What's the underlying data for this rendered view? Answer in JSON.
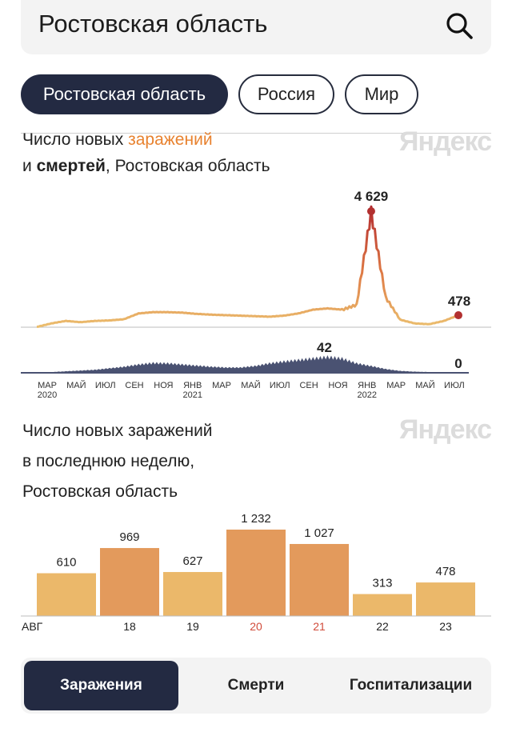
{
  "search": {
    "value": "Ростовская область"
  },
  "region_tabs": [
    "Ростовская область",
    "Россия",
    "Мир"
  ],
  "chart1": {
    "title_part1": "Число новых ",
    "title_accent": "заражений",
    "title_part2": "и ",
    "title_bold": "смертей",
    "title_part3": ", Ростовская область",
    "watermark": "Яндекс",
    "peak_label": "4 629",
    "last_label": "478",
    "deaths_peak_label": "42",
    "deaths_last_label": "0",
    "month_labels": [
      "МАР",
      "МАЙ",
      "ИЮЛ",
      "СЕН",
      "НОЯ",
      "ЯНВ",
      "МАР",
      "МАЙ",
      "ИЮЛ",
      "СЕН",
      "НОЯ",
      "ЯНВ",
      "МАР",
      "МАЙ",
      "ИЮЛ"
    ],
    "year_labels": [
      "2020",
      "2021",
      "2022"
    ]
  },
  "chart2": {
    "title_line1": "Число новых заражений",
    "title_line2": "в последнюю неделю,",
    "title_line3": "Ростовская область",
    "watermark": "Яндекс"
  },
  "chart_data": [
    {
      "type": "area",
      "title": "Число новых заражений и смертей, Ростовская область",
      "series": [
        {
          "name": "заражений",
          "x": [
            "2020-03",
            "2020-04",
            "2020-05",
            "2020-06",
            "2020-07",
            "2020-08",
            "2020-09",
            "2020-10",
            "2020-11",
            "2020-12",
            "2021-01",
            "2021-02",
            "2021-03",
            "2021-04",
            "2021-05",
            "2021-06",
            "2021-07",
            "2021-08",
            "2021-09",
            "2021-10",
            "2021-11",
            "2021-12",
            "2022-01",
            "2022-02",
            "2022-03",
            "2022-04",
            "2022-05",
            "2022-06",
            "2022-07",
            "2022-08"
          ],
          "values": [
            10,
            150,
            250,
            200,
            250,
            270,
            320,
            550,
            600,
            600,
            580,
            530,
            500,
            480,
            460,
            440,
            420,
            460,
            550,
            700,
            750,
            700,
            900,
            4629,
            1200,
            300,
            150,
            120,
            250,
            478
          ]
        },
        {
          "name": "смертей",
          "x": [
            "2020-03",
            "2020-04",
            "2020-05",
            "2020-06",
            "2020-07",
            "2020-08",
            "2020-09",
            "2020-10",
            "2020-11",
            "2020-12",
            "2021-01",
            "2021-02",
            "2021-03",
            "2021-04",
            "2021-05",
            "2021-06",
            "2021-07",
            "2021-08",
            "2021-09",
            "2021-10",
            "2021-11",
            "2021-12",
            "2022-01",
            "2022-02",
            "2022-03",
            "2022-04",
            "2022-05",
            "2022-06",
            "2022-07",
            "2022-08"
          ],
          "values": [
            0,
            2,
            4,
            6,
            8,
            12,
            16,
            22,
            26,
            25,
            22,
            19,
            16,
            14,
            14,
            18,
            25,
            30,
            34,
            38,
            42,
            38,
            25,
            18,
            10,
            5,
            3,
            2,
            1,
            0
          ]
        }
      ],
      "annotations": [
        "4 629",
        "478",
        "42",
        "0"
      ]
    },
    {
      "type": "bar",
      "title": "Число новых заражений в последнюю неделю, Ростовская область",
      "categories": [
        "АВГ",
        "18",
        "19",
        "20",
        "21",
        "22",
        "23"
      ],
      "values": [
        610,
        969,
        627,
        1232,
        1027,
        313,
        478
      ],
      "highlighted": [
        false,
        true,
        false,
        true,
        true,
        false,
        false
      ],
      "weekend_labels": [
        false,
        false,
        false,
        true,
        true,
        false,
        false
      ],
      "ylim": [
        0,
        1300
      ]
    }
  ],
  "metric_tabs": [
    "Заражения",
    "Смерти",
    "Госпитализации"
  ],
  "colors": {
    "navy": "#232a42",
    "bar_light": "#ebb86a",
    "bar_dark": "#e39a5c",
    "cases_line": "#ebbe6e",
    "peak_red": "#b23030",
    "weekend_red": "#d14b3a",
    "deaths_fill": "#4a5272"
  }
}
